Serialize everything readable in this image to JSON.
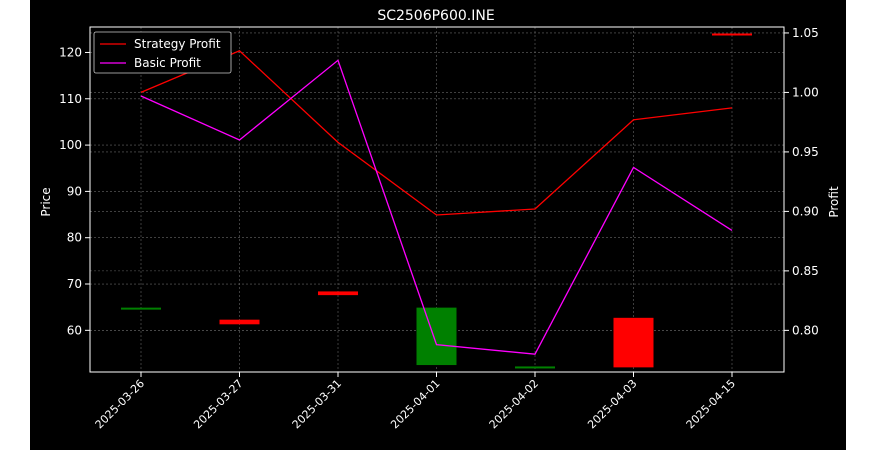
{
  "chart_data": {
    "type": "candlestick+line",
    "title": "SC2506P600.INE",
    "xlabel": "",
    "ylabel_left": "Price",
    "ylabel_right": "Profit",
    "categories": [
      "2025-03-26",
      "2025-03-27",
      "2025-03-31",
      "2025-04-01",
      "2025-04-02",
      "2025-04-03",
      "2025-04-15"
    ],
    "ylim_left": [
      51,
      125.5
    ],
    "yticks_left": [
      60,
      70,
      80,
      90,
      100,
      110,
      120
    ],
    "ylim_right": [
      0.765,
      1.055
    ],
    "yticks_right": [
      "0.80",
      "0.85",
      "0.90",
      "0.95",
      "1.00",
      "1.05"
    ],
    "grid": true,
    "legend_position": "top-left",
    "background": "#000000",
    "candles": [
      {
        "date": "2025-03-26",
        "open": 64.6,
        "close": 64.9,
        "color": "#008000"
      },
      {
        "date": "2025-03-27",
        "open": 62.3,
        "close": 61.3,
        "color": "#ff0000"
      },
      {
        "date": "2025-03-31",
        "open": 68.4,
        "close": 67.6,
        "color": "#ff0000"
      },
      {
        "date": "2025-04-01",
        "open": 52.5,
        "close": 64.9,
        "color": "#008000"
      },
      {
        "date": "2025-04-02",
        "open": 51.8,
        "close": 52.2,
        "color": "#008000"
      },
      {
        "date": "2025-04-03",
        "open": 62.7,
        "close": 52.0,
        "color": "#ff0000"
      },
      {
        "date": "2025-04-15",
        "open": 124.1,
        "close": 123.7,
        "color": "#ff0000"
      }
    ],
    "series": [
      {
        "name": "Strategy Profit",
        "color": "#ff0000",
        "axis": "right",
        "values": [
          1.0,
          1.035,
          0.958,
          0.897,
          0.902,
          0.977,
          0.987
        ]
      },
      {
        "name": "Basic Profit",
        "color": "#ff00ff",
        "axis": "right",
        "values": [
          0.997,
          0.96,
          1.027,
          0.788,
          0.78,
          0.937,
          0.884
        ]
      }
    ]
  }
}
